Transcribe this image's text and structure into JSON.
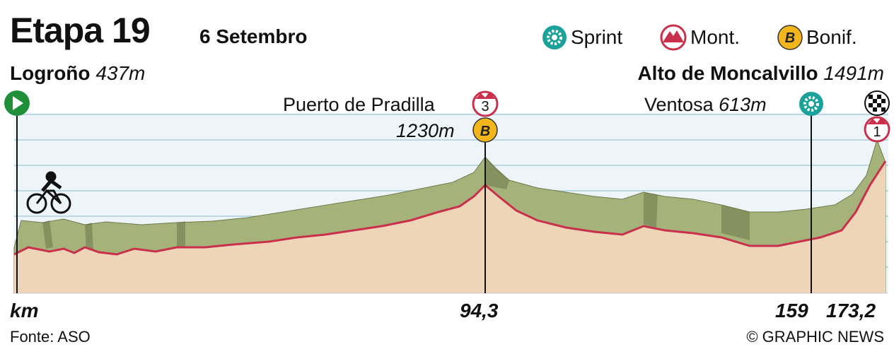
{
  "header": {
    "title": "Etapa 19",
    "date": "6 Setembro"
  },
  "legend": [
    {
      "icon": "sprint-icon",
      "label": "Sprint"
    },
    {
      "icon": "mountain-icon",
      "label": "Mont."
    },
    {
      "icon": "bonus-icon",
      "label": "Bonif.",
      "glyph": "B"
    }
  ],
  "start": {
    "name": "Logroño",
    "altitude": "437m"
  },
  "finish": {
    "name": "Alto de Moncalvillo",
    "altitude": "1491m"
  },
  "points": {
    "pradilla": {
      "name": "Puerto de Pradilla",
      "category": "3",
      "altitude": "1230m",
      "bonus": "B",
      "km": "94,3"
    },
    "ventosa": {
      "name": "Ventosa",
      "altitude": "613m",
      "km": "159"
    },
    "moncalvillo": {
      "category": "1",
      "km": "173,2"
    }
  },
  "axis_label": "km",
  "source": "Fonte: ASO",
  "credit": "© GRAPHIC NEWS",
  "colors": {
    "profile_fill": "#efd5b8",
    "profile_line": "#c8304c",
    "terrain_top": "#a5b27a",
    "sky": "#eef5f9",
    "sprint": "#1aa199",
    "mountain": "#c8304c",
    "bonus": "#f2b51b",
    "start_arrow": "#1f8f3a"
  },
  "chart_data": {
    "type": "area",
    "x_unit": "km",
    "y_unit": "m",
    "x": [
      0,
      8,
      16,
      24,
      32,
      40,
      48,
      56,
      64,
      72,
      80,
      88,
      94.3,
      102,
      110,
      118,
      126,
      134,
      142,
      150,
      159,
      166,
      170,
      173.2
    ],
    "y": [
      437,
      452,
      458,
      444,
      455,
      470,
      490,
      520,
      580,
      660,
      760,
      880,
      1230,
      1000,
      850,
      790,
      720,
      800,
      740,
      630,
      613,
      700,
      1050,
      1491
    ]
  }
}
